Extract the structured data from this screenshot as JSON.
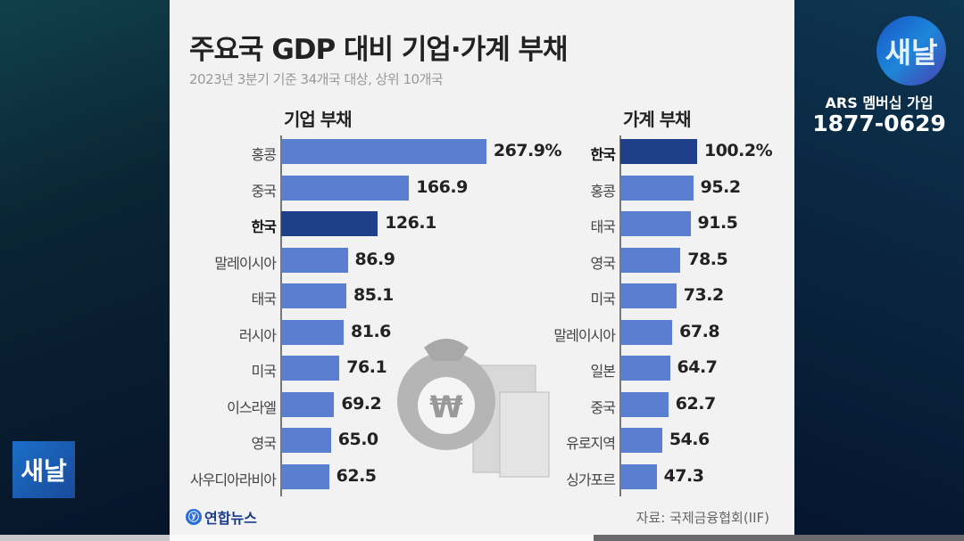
{
  "chart_data": [
    {
      "type": "bar",
      "orientation": "horizontal",
      "title": "기업 부채",
      "unit": "%",
      "categories": [
        "홍콩",
        "중국",
        "한국",
        "말레이시아",
        "태국",
        "러시아",
        "미국",
        "이스라엘",
        "영국",
        "사우디아라비아"
      ],
      "values": [
        267.9,
        166.9,
        126.1,
        86.9,
        85.1,
        81.6,
        76.1,
        69.2,
        65.0,
        62.5
      ],
      "labels": [
        "267.9%",
        "166.9",
        "126.1",
        "86.9",
        "85.1",
        "81.6",
        "76.1",
        "69.2",
        "65.0",
        "62.5"
      ],
      "highlight": "한국"
    },
    {
      "type": "bar",
      "orientation": "horizontal",
      "title": "가계 부채",
      "unit": "%",
      "categories": [
        "한국",
        "홍콩",
        "태국",
        "영국",
        "미국",
        "말레이시아",
        "일본",
        "중국",
        "유로지역",
        "싱가포르"
      ],
      "values": [
        100.2,
        95.2,
        91.5,
        78.5,
        73.2,
        67.8,
        64.7,
        62.7,
        54.6,
        47.3
      ],
      "labels": [
        "100.2%",
        "95.2",
        "91.5",
        "78.5",
        "73.2",
        "67.8",
        "64.7",
        "62.7",
        "54.6",
        "47.3"
      ],
      "highlight": "한국"
    }
  ],
  "header": {
    "title": "주요국 GDP 대비 기업·가계 부채",
    "subtitle": "2023년 3분기 기준 34개국 대상, 상위 10개국"
  },
  "footer": {
    "agency": "연합뉴스",
    "source": "자료: 국제금융협회(IIF)"
  },
  "broadcast": {
    "logo": "새날",
    "ars_label": "ARS 멤버십 가입",
    "ars_number": "1877-0629"
  },
  "colors": {
    "bar": "#5b7fd0",
    "highlight": "#1f3f8a"
  }
}
